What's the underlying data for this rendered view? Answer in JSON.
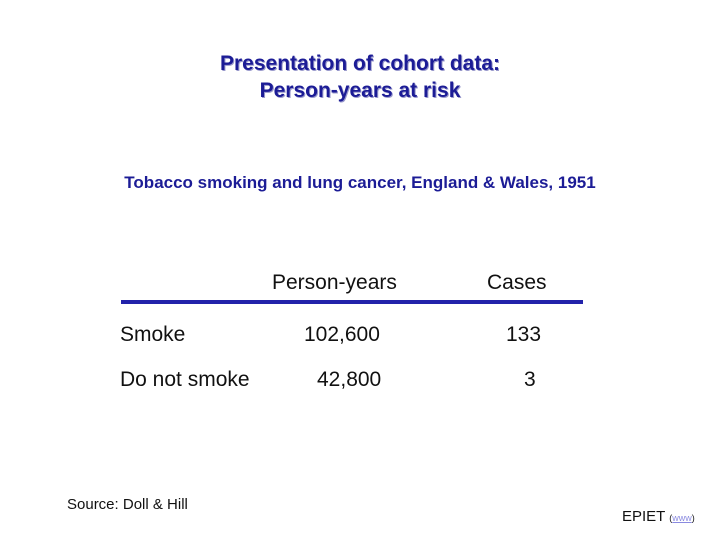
{
  "slide": {
    "title_line1": "Presentation of cohort data:",
    "title_line2": "Person-years at risk",
    "subtitle": "Tobacco smoking and lung cancer, England & Wales, 1951"
  },
  "table": {
    "headers": [
      "Person-years",
      "Cases"
    ],
    "rows": [
      {
        "label": "Smoke",
        "person_years": "102,600",
        "cases": "133"
      },
      {
        "label": "Do not smoke",
        "person_years": "42,800",
        "cases": "3"
      }
    ],
    "rule_color": "#2222aa"
  },
  "source": "Source: Doll & Hill",
  "footer": {
    "brand": "EPIET",
    "open_paren": "(",
    "link_text": "www",
    "close_paren": ")"
  },
  "colors": {
    "title": "#1c1c96",
    "text": "#111111",
    "link": "#8a8ae0"
  }
}
